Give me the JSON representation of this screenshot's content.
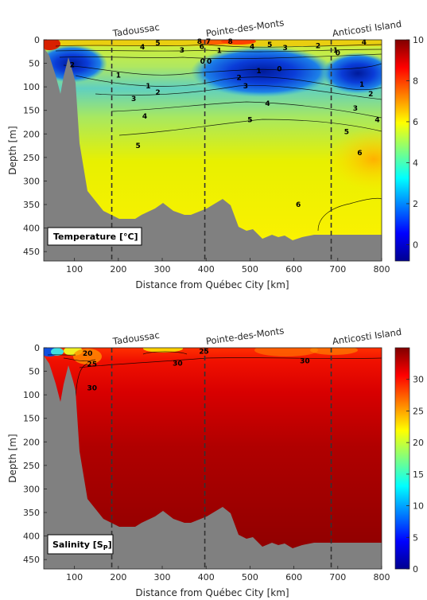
{
  "chart_data": [
    {
      "type": "heatmap",
      "panel_label": "Temperature [°C]",
      "xlabel": "Distance from Québec City [km]",
      "ylabel": "Depth [m]",
      "xlim": [
        30,
        800
      ],
      "ylim": [
        0,
        470
      ],
      "y_reversed": true,
      "x_ticks": [
        "100",
        "200",
        "300",
        "400",
        "500",
        "600",
        "700",
        "800"
      ],
      "y_ticks": [
        "0",
        "50",
        "100",
        "150",
        "200",
        "250",
        "300",
        "350",
        "400",
        "450"
      ],
      "colorbar": {
        "min": -0.8,
        "max": 10,
        "ticks": [
          "0",
          "2",
          "4",
          "6",
          "8",
          "10"
        ]
      },
      "locations": [
        {
          "name": "Tadoussac",
          "x": 185
        },
        {
          "name": "Pointe-des-Monts",
          "x": 397
        },
        {
          "name": "Anticosti Island",
          "x": 685
        }
      ],
      "contour_labels": [
        {
          "text": "8",
          "x": 385,
          "y": 3
        },
        {
          "text": "7",
          "x": 405,
          "y": 3
        },
        {
          "text": "8",
          "x": 455,
          "y": 3
        },
        {
          "text": "6",
          "x": 390,
          "y": 14
        },
        {
          "text": "5",
          "x": 290,
          "y": 7
        },
        {
          "text": "5",
          "x": 545,
          "y": 10
        },
        {
          "text": "4",
          "x": 255,
          "y": 15
        },
        {
          "text": "4",
          "x": 505,
          "y": 14
        },
        {
          "text": "4",
          "x": 760,
          "y": 5
        },
        {
          "text": "3",
          "x": 345,
          "y": 22
        },
        {
          "text": "3",
          "x": 580,
          "y": 17
        },
        {
          "text": "2",
          "x": 655,
          "y": 13
        },
        {
          "text": "1",
          "x": 695,
          "y": 22
        },
        {
          "text": "0",
          "x": 700,
          "y": 28
        },
        {
          "text": "2",
          "x": 95,
          "y": 53
        },
        {
          "text": "1",
          "x": 200,
          "y": 75
        },
        {
          "text": "0",
          "x": 392,
          "y": 46
        },
        {
          "text": "0",
          "x": 407,
          "y": 46
        },
        {
          "text": "1",
          "x": 430,
          "y": 23
        },
        {
          "text": "0",
          "x": 567,
          "y": 62
        },
        {
          "text": "1",
          "x": 520,
          "y": 66
        },
        {
          "text": "2",
          "x": 475,
          "y": 80
        },
        {
          "text": "3",
          "x": 490,
          "y": 98
        },
        {
          "text": "1",
          "x": 268,
          "y": 98
        },
        {
          "text": "2",
          "x": 290,
          "y": 112
        },
        {
          "text": "3",
          "x": 235,
          "y": 125
        },
        {
          "text": "1",
          "x": 755,
          "y": 95
        },
        {
          "text": "2",
          "x": 775,
          "y": 115
        },
        {
          "text": "3",
          "x": 740,
          "y": 145
        },
        {
          "text": "4",
          "x": 540,
          "y": 135
        },
        {
          "text": "4",
          "x": 260,
          "y": 162
        },
        {
          "text": "4",
          "x": 790,
          "y": 170
        },
        {
          "text": "5",
          "x": 500,
          "y": 170
        },
        {
          "text": "5",
          "x": 245,
          "y": 225
        },
        {
          "text": "5",
          "x": 720,
          "y": 195
        },
        {
          "text": "6",
          "x": 750,
          "y": 240
        },
        {
          "text": "6",
          "x": 610,
          "y": 350
        }
      ]
    },
    {
      "type": "heatmap",
      "panel_label": "Salinity [S",
      "panel_label_sub": "P",
      "panel_label_end": "]",
      "xlabel": "Distance from Québec City [km]",
      "ylabel": "Depth [m]",
      "xlim": [
        30,
        800
      ],
      "ylim": [
        0,
        470
      ],
      "y_reversed": true,
      "x_ticks": [
        "100",
        "200",
        "300",
        "400",
        "500",
        "600",
        "700",
        "800"
      ],
      "y_ticks": [
        "0",
        "50",
        "100",
        "150",
        "200",
        "250",
        "300",
        "350",
        "400",
        "450"
      ],
      "colorbar": {
        "min": 0,
        "max": 35,
        "ticks": [
          "0",
          "5",
          "10",
          "15",
          "20",
          "25",
          "30"
        ]
      },
      "locations": [
        {
          "name": "Tadoussac",
          "x": 185
        },
        {
          "name": "Pointe-des-Monts",
          "x": 397
        },
        {
          "name": "Anticosti Island",
          "x": 685
        }
      ],
      "contour_labels": [
        {
          "text": "20",
          "x": 130,
          "y": 12
        },
        {
          "text": "25",
          "x": 140,
          "y": 35
        },
        {
          "text": "30",
          "x": 140,
          "y": 85
        },
        {
          "text": "25",
          "x": 395,
          "y": 8
        },
        {
          "text": "30",
          "x": 335,
          "y": 33
        },
        {
          "text": "30",
          "x": 625,
          "y": 28
        }
      ]
    }
  ]
}
